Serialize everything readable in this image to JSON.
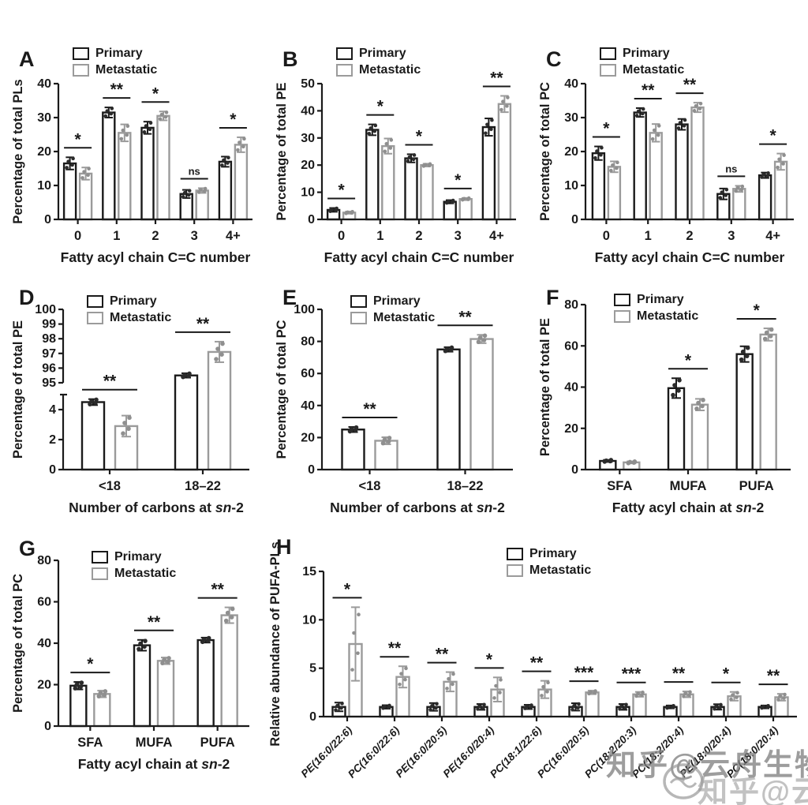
{
  "legend": {
    "primary": "Primary",
    "metastatic": "Metastatic"
  },
  "colors": {
    "primary": "#1a1a1a",
    "metastatic": "#9b9b9b",
    "dot_primary": "#2b2b2b",
    "dot_metastatic": "#8f8f8f",
    "background": "#ffffff",
    "significance": "#1a1a1a"
  },
  "watermark": {
    "text": "知乎@云舟生物",
    "logo": "yunzhou-boat-logo"
  },
  "chart_data": [
    {
      "id": "A",
      "type": "bar",
      "title": "",
      "ylabel": "Percentage of total PLs",
      "xlabel": "Fatty acyl chain C=C number",
      "ylim": [
        0,
        40
      ],
      "yticks": [
        0,
        10,
        20,
        30,
        40
      ],
      "categories": [
        "0",
        "1",
        "2",
        "3",
        "4+"
      ],
      "series": [
        {
          "name": "Primary",
          "values": [
            16.5,
            31.5,
            27,
            7.5,
            17
          ],
          "errors": [
            1.8,
            1.5,
            1.8,
            1.2,
            1.5
          ]
        },
        {
          "name": "Metastatic",
          "values": [
            13.5,
            25.5,
            30.5,
            8.5,
            22
          ],
          "errors": [
            1.8,
            2.5,
            1.3,
            0.7,
            2.2
          ]
        }
      ],
      "significance": [
        "*",
        "**",
        "*",
        "ns",
        "*"
      ],
      "legend_position": "top-left",
      "grid": false
    },
    {
      "id": "B",
      "type": "bar",
      "title": "",
      "ylabel": "Percentage of total PE",
      "xlabel": "Fatty acyl chain C=C number",
      "ylim": [
        0,
        50
      ],
      "yticks": [
        0,
        10,
        20,
        30,
        40,
        50
      ],
      "categories": [
        "0",
        "1",
        "2",
        "3",
        "4+"
      ],
      "series": [
        {
          "name": "Primary",
          "values": [
            3.5,
            33,
            22.5,
            6.5,
            34
          ],
          "errors": [
            0.7,
            2,
            1.5,
            0.6,
            3.2
          ]
        },
        {
          "name": "Metastatic",
          "values": [
            2.5,
            27,
            20,
            7.5,
            42.5
          ],
          "errors": [
            0.4,
            2.8,
            0.5,
            0.4,
            3
          ]
        }
      ],
      "significance": [
        "*",
        "*",
        "*",
        "*",
        "**"
      ],
      "legend_position": "top-left",
      "grid": false
    },
    {
      "id": "C",
      "type": "bar",
      "title": "",
      "ylabel": "Percentage of total PC",
      "xlabel": "Fatty acyl chain C=C number",
      "ylim": [
        0,
        40
      ],
      "yticks": [
        0,
        10,
        20,
        30,
        40
      ],
      "categories": [
        "0",
        "1",
        "2",
        "3",
        "4+"
      ],
      "series": [
        {
          "name": "Primary",
          "values": [
            19.5,
            31.5,
            28,
            7.5,
            13
          ],
          "errors": [
            2,
            1.3,
            1.6,
            1.6,
            0.8
          ]
        },
        {
          "name": "Metastatic",
          "values": [
            15.5,
            25.5,
            33,
            9,
            17
          ],
          "errors": [
            1.6,
            2.6,
            1.4,
            0.9,
            2.4
          ]
        }
      ],
      "significance": [
        "*",
        "**",
        "**",
        "ns",
        "*"
      ],
      "legend_position": "top-left",
      "grid": false
    },
    {
      "id": "D",
      "type": "bar",
      "title": "",
      "ylabel": "Percentage of total PE",
      "xlabel": "Number of carbons at sn-2",
      "axis_break": {
        "lower_lim": [
          0,
          5
        ],
        "upper_lim": [
          95,
          100
        ],
        "lower_ticks": [
          0,
          2,
          4
        ],
        "upper_ticks": [
          95,
          96,
          97,
          98,
          99,
          100
        ]
      },
      "categories": [
        "<18",
        "18–22"
      ],
      "series": [
        {
          "name": "Primary",
          "values": [
            4.5,
            95.5
          ],
          "errors": [
            0.2,
            0.15
          ]
        },
        {
          "name": "Metastatic",
          "values": [
            2.9,
            97.1
          ],
          "errors": [
            0.7,
            0.7
          ]
        }
      ],
      "significance": [
        "**",
        "**"
      ],
      "legend_position": "top-left",
      "grid": false
    },
    {
      "id": "E",
      "type": "bar",
      "title": "",
      "ylabel": "Percentage of total PC",
      "xlabel": "Number of carbons at sn-2",
      "ylim": [
        0,
        100
      ],
      "yticks": [
        0,
        20,
        40,
        60,
        80,
        100
      ],
      "categories": [
        "<18",
        "18–22"
      ],
      "series": [
        {
          "name": "Primary",
          "values": [
            25,
            75
          ],
          "errors": [
            1.6,
            1.4
          ]
        },
        {
          "name": "Metastatic",
          "values": [
            18,
            81.5
          ],
          "errors": [
            2.2,
            2.6
          ]
        }
      ],
      "significance": [
        "**",
        "**"
      ],
      "legend_position": "top-left",
      "grid": false
    },
    {
      "id": "F",
      "type": "bar",
      "title": "",
      "ylabel": "Percentage of total PE",
      "xlabel": "Fatty acyl chain at sn-2",
      "ylim": [
        0,
        80
      ],
      "yticks": [
        0,
        20,
        40,
        60,
        80
      ],
      "categories": [
        "SFA",
        "MUFA",
        "PUFA"
      ],
      "series": [
        {
          "name": "Primary",
          "values": [
            4.2,
            39.5,
            56
          ],
          "errors": [
            0.5,
            4.8,
            3.8
          ]
        },
        {
          "name": "Metastatic",
          "values": [
            3.5,
            31.5,
            65.5
          ],
          "errors": [
            0.5,
            2.8,
            3
          ]
        }
      ],
      "significance": [
        "",
        "*",
        "*"
      ],
      "legend_position": "top-left",
      "grid": false
    },
    {
      "id": "G",
      "type": "bar",
      "title": "",
      "ylabel": "Percentage of total PC",
      "xlabel": "Fatty acyl chain at sn-2",
      "ylim": [
        0,
        80
      ],
      "yticks": [
        0,
        20,
        40,
        60,
        80
      ],
      "categories": [
        "SFA",
        "MUFA",
        "PUFA"
      ],
      "series": [
        {
          "name": "Primary",
          "values": [
            19.5,
            39,
            41.5
          ],
          "errors": [
            1.8,
            2.6,
            1.2
          ]
        },
        {
          "name": "Metastatic",
          "values": [
            15.5,
            31.5,
            53.5
          ],
          "errors": [
            1.6,
            1.6,
            3.8
          ]
        }
      ],
      "significance": [
        "*",
        "**",
        "**"
      ],
      "legend_position": "top-left",
      "grid": false
    },
    {
      "id": "H",
      "type": "bar",
      "title": "",
      "ylabel": "Relative abundance of PUFA-PLs",
      "xlabel": "",
      "ylim": [
        0,
        15
      ],
      "yticks": [
        0,
        5,
        10,
        15
      ],
      "categories": [
        "PE(16:0/22:6)",
        "PC(16:0/22:6)",
        "PE(16:0/20:5)",
        "PE(16:0/20:4)",
        "PC(18:1/22:6)",
        "PC(16:0/20:5)",
        "PC(18:2/20:3)",
        "PC(18:2/20:4)",
        "PE(18:0/20:4)",
        "PC(18:0/20:4)"
      ],
      "xticks_italic": true,
      "xticks_rotate": 45,
      "series": [
        {
          "name": "Primary",
          "values": [
            1,
            1,
            1,
            1,
            1,
            1,
            1,
            1,
            1,
            1
          ],
          "errors": [
            0.45,
            0.18,
            0.4,
            0.3,
            0.22,
            0.38,
            0.3,
            0.15,
            0.28,
            0.15
          ]
        },
        {
          "name": "Metastatic",
          "values": [
            7.5,
            4.1,
            3.6,
            2.8,
            2.8,
            2.5,
            2.3,
            2.3,
            2.1,
            2.0
          ],
          "errors": [
            3.8,
            1.1,
            1.0,
            1.25,
            0.9,
            0.18,
            0.25,
            0.3,
            0.45,
            0.35
          ]
        }
      ],
      "significance": [
        "*",
        "**",
        "**",
        "*",
        "**",
        "***",
        "***",
        "**",
        "*",
        "**"
      ],
      "legend_position": "top-center",
      "grid": false
    }
  ]
}
